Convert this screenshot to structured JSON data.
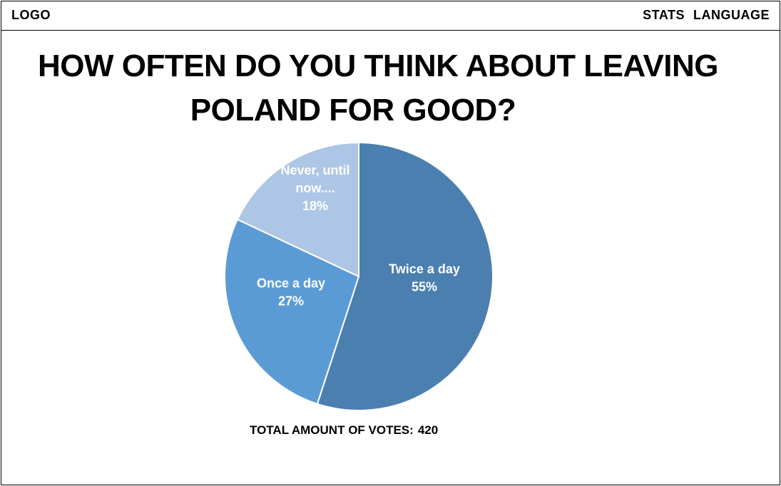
{
  "header": {
    "logo": "LOGO",
    "nav": [
      "STATS",
      "LANGUAGE"
    ]
  },
  "chart_data": {
    "type": "pie",
    "title_lines": [
      "HOW OFTEN DO YOU THINK ABOUT LEAVING",
      "POLAND FOR GOOD?"
    ],
    "slices": [
      {
        "label_lines": [
          "Twice a day"
        ],
        "percent_label": "55%",
        "value": 55,
        "color": "#4a7fb0"
      },
      {
        "label_lines": [
          "Once a day"
        ],
        "percent_label": "27%",
        "value": 27,
        "color": "#5b9bd5"
      },
      {
        "label_lines": [
          "Never, until",
          "now...."
        ],
        "percent_label": "18%",
        "value": 18,
        "color": "#adc6e6"
      }
    ],
    "footer_label": "TOTAL AMOUNT OF VOTES:",
    "footer_value": "420"
  }
}
